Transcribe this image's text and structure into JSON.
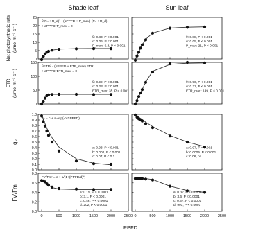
{
  "columns": [
    "Shade leaf",
    "Sun leaf"
  ],
  "x_axis": {
    "label": "PPFD",
    "ticks": [
      0,
      500,
      1000,
      1500,
      2000,
      2500
    ],
    "range": [
      -100,
      2500
    ]
  },
  "chart_data": [
    {
      "type": "scatter",
      "row": 0,
      "col": 0,
      "ylabel": "Net photosynthetic rate (µmol m⁻² s⁻¹)",
      "ylabel_lines": [
        "Net photosynthetic rate",
        "(µmol m⁻² s⁻¹)"
      ],
      "yticks": [
        0,
        5,
        10,
        15,
        20,
        25
      ],
      "ylim": [
        0,
        25
      ],
      "equation": [
        "θ(Pₙ + R_d)² - (αPPFD + P_max)·(Pₙ + R_d)",
        "+ αPPFD*P_max = 0"
      ],
      "params": [
        "θ:  0.83, P < 0.001",
        "α:  0.06, P < 0.001",
        "P_max:  6.3,  P < 0.001"
      ],
      "x": [
        0,
        50,
        100,
        150,
        200,
        300,
        500,
        1000,
        1500,
        2000
      ],
      "y": [
        -0.4,
        1.6,
        3.0,
        4.0,
        4.6,
        5.3,
        5.8,
        6.1,
        6.2,
        6.2
      ],
      "fit_y": [
        -0.4,
        1.7,
        3.1,
        4.0,
        4.6,
        5.3,
        5.9,
        6.2,
        6.3,
        6.3
      ]
    },
    {
      "type": "scatter",
      "row": 0,
      "col": 1,
      "ylabel": "",
      "yticks": [
        0,
        5,
        10,
        15,
        20,
        25
      ],
      "ylim": [
        0,
        25
      ],
      "params": [
        "θ:  0.88, P < 0.001",
        "α:  0.05, P < 0.001",
        "P_max:  21,  P < 0.001"
      ],
      "x": [
        0,
        50,
        100,
        150,
        200,
        300,
        500,
        1000,
        1500,
        2000
      ],
      "y": [
        -0.8,
        1.8,
        4.0,
        6.5,
        8.5,
        11.5,
        15.5,
        18.5,
        19.0,
        19.2
      ],
      "fit_y": [
        -0.8,
        1.9,
        4.2,
        6.5,
        8.5,
        11.8,
        15.6,
        18.6,
        19.1,
        19.3
      ]
    },
    {
      "type": "scatter",
      "row": 1,
      "col": 0,
      "ylabel": "ETR (µmol m⁻² s⁻¹)",
      "ylabel_lines": [
        "ETR",
        "(µmol m⁻² s⁻¹)"
      ],
      "yticks": [
        0,
        50,
        100,
        150
      ],
      "ylim": [
        0,
        150
      ],
      "equation": [
        "θETR² - (αPPFD + ETR_max) ETR",
        "+ αPPFD*ETR_max = 0"
      ],
      "params": [
        "θ:  0.99, P < 0.001",
        "α:  0.23, P < 0.001",
        "ETR_max:  35,  P < 0.001"
      ],
      "x": [
        0,
        50,
        100,
        150,
        200,
        300,
        500,
        1000,
        1500,
        2000
      ],
      "y": [
        0,
        10,
        21,
        30,
        33,
        34,
        35,
        35,
        34,
        34
      ],
      "fit_y": [
        0,
        11,
        22,
        32,
        34,
        35,
        35,
        35,
        35,
        35
      ]
    },
    {
      "type": "scatter",
      "row": 1,
      "col": 1,
      "ylabel": "",
      "yticks": [
        0,
        50,
        100,
        150
      ],
      "ylim": [
        0,
        150
      ],
      "params": [
        "θ:  0.96, P < 0.001",
        "α:  0.27, P < 0.001",
        "ETR_max:  149,  P < 0.001"
      ],
      "x": [
        0,
        50,
        100,
        150,
        200,
        300,
        500,
        1000,
        1500,
        2000
      ],
      "y": [
        0,
        12,
        27,
        40,
        52,
        78,
        115,
        145,
        150,
        148
      ],
      "fit_y": [
        0,
        13,
        27,
        40,
        53,
        79,
        118,
        143,
        147,
        148
      ]
    },
    {
      "type": "scatter",
      "row": 2,
      "col": 0,
      "ylabel": "qₚ",
      "yticks": [
        0.0,
        0.1,
        0.2,
        0.3,
        0.4,
        0.5,
        0.6,
        0.7,
        0.8,
        0.9,
        1.0
      ],
      "ylim": [
        0,
        1.0
      ],
      "equation": [
        "qₚ = c + a·exp(-b * PPFD)"
      ],
      "params": [
        "a:  0.93, P < 0.001",
        "b:  0.002, P < 0.001",
        "c:  0.07, P < 0.1"
      ],
      "x": [
        0,
        50,
        100,
        150,
        200,
        300,
        500,
        1000,
        1500,
        2000
      ],
      "y": [
        0.97,
        0.87,
        0.79,
        0.7,
        0.62,
        0.5,
        0.34,
        0.16,
        0.11,
        0.1
      ],
      "fit_y": [
        1.0,
        0.91,
        0.83,
        0.75,
        0.69,
        0.58,
        0.41,
        0.2,
        0.12,
        0.09
      ]
    },
    {
      "type": "scatter",
      "row": 2,
      "col": 1,
      "ylabel": "",
      "yticks": [
        0.0,
        0.1,
        0.2,
        0.3,
        0.4,
        0.5,
        0.6,
        0.7,
        0.8,
        0.9,
        1.0
      ],
      "ylim": [
        0,
        1.0
      ],
      "params": [
        "a:  0.97, P < 0.001",
        "b:  0.0005, P < 0.001",
        "c:  0.06, ns"
      ],
      "x": [
        0,
        50,
        100,
        150,
        200,
        300,
        500,
        1000,
        1500,
        2000
      ],
      "y": [
        0.99,
        0.95,
        0.92,
        0.9,
        0.88,
        0.83,
        0.76,
        0.61,
        0.5,
        0.41
      ],
      "fit_y": [
        1.0,
        0.98,
        0.95,
        0.93,
        0.91,
        0.86,
        0.78,
        0.62,
        0.5,
        0.42
      ]
    },
    {
      "type": "scatter",
      "row": 3,
      "col": 0,
      "ylabel": "Fv'/Fm'",
      "yticks": [
        0.0,
        0.2,
        0.4,
        0.6,
        0.8
      ],
      "ylim": [
        0,
        0.8
      ],
      "equation": [
        "Fv'/Fm' = c + a/(1+(PPFD/d)ᵇ)"
      ],
      "params": [
        "a:  0.19,  P < 0.0001",
        "b:  3.1,  P < 0.0001",
        "c:  0.46,  P < 0.0001",
        "d:  202,  P < 0.0001"
      ],
      "x": [
        0,
        50,
        100,
        150,
        200,
        300,
        500,
        1000,
        1500,
        2000
      ],
      "y": [
        0.65,
        0.64,
        0.62,
        0.58,
        0.55,
        0.51,
        0.48,
        0.47,
        0.46,
        0.46
      ],
      "fit_y": [
        0.65,
        0.65,
        0.63,
        0.59,
        0.55,
        0.5,
        0.47,
        0.46,
        0.46,
        0.46
      ]
    },
    {
      "type": "scatter",
      "row": 3,
      "col": 1,
      "ylabel": "",
      "yticks": [
        0.0,
        0.2,
        0.4,
        0.6,
        0.8
      ],
      "ylim": [
        0,
        0.8
      ],
      "params": [
        "a:  0.32,  P < 0.0001",
        "b:  3.6,  P < 0.0001",
        "c:  0.37,  P < 0.0001",
        "d:  991,  P < 0.0001"
      ],
      "x": [
        0,
        50,
        100,
        150,
        200,
        300,
        500,
        1000,
        1500,
        2000
      ],
      "y": [
        0.69,
        0.69,
        0.69,
        0.69,
        0.69,
        0.68,
        0.66,
        0.53,
        0.43,
        0.4
      ],
      "fit_y": [
        0.69,
        0.69,
        0.69,
        0.69,
        0.69,
        0.69,
        0.67,
        0.53,
        0.44,
        0.4
      ]
    }
  ]
}
